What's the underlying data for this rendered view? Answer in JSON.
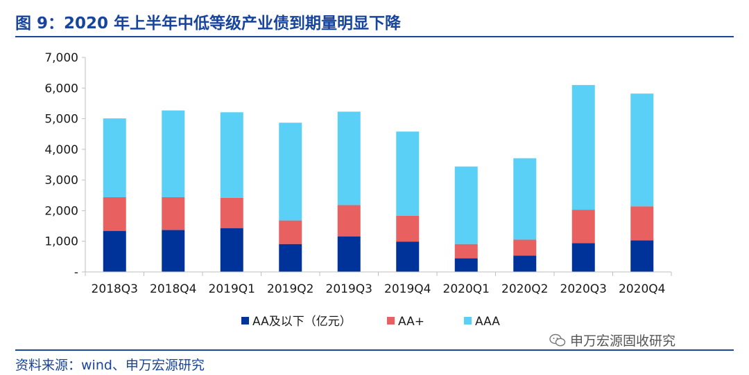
{
  "header": {
    "title": "图 9：2020 年上半年中低等级产业债到期量明显下降"
  },
  "footer": {
    "source": "资料来源：wind、申万宏源研究",
    "watermark": "申万宏源固收研究",
    "watermark_icon": "wechat-icon"
  },
  "colors": {
    "AA及以下（亿元）": "#003399",
    "AA+": "#e8605f",
    "AAA": "#5bd0f6",
    "title": "#17449c"
  },
  "chart_data": {
    "type": "bar",
    "stacked": true,
    "categories": [
      "2018Q3",
      "2018Q4",
      "2019Q1",
      "2019Q2",
      "2019Q3",
      "2019Q4",
      "2020Q1",
      "2020Q2",
      "2020Q3",
      "2020Q4"
    ],
    "series": [
      {
        "name": "AA及以下（亿元）",
        "color": "#003399",
        "values": [
          1340,
          1370,
          1430,
          910,
          1160,
          990,
          440,
          530,
          940,
          1030
        ]
      },
      {
        "name": "AA+",
        "color": "#e8605f",
        "values": [
          1100,
          1070,
          990,
          770,
          1020,
          840,
          470,
          520,
          1090,
          1110
        ]
      },
      {
        "name": "AAA",
        "color": "#5bd0f6",
        "values": [
          2570,
          2830,
          2790,
          3190,
          3050,
          2750,
          2530,
          2660,
          4070,
          3680
        ]
      }
    ],
    "ylim": [
      0,
      7000
    ],
    "yticks": [
      "-",
      "1,000",
      "2,000",
      "3,000",
      "4,000",
      "5,000",
      "6,000",
      "7,000"
    ],
    "grid": false,
    "legend_position": "bottom"
  }
}
